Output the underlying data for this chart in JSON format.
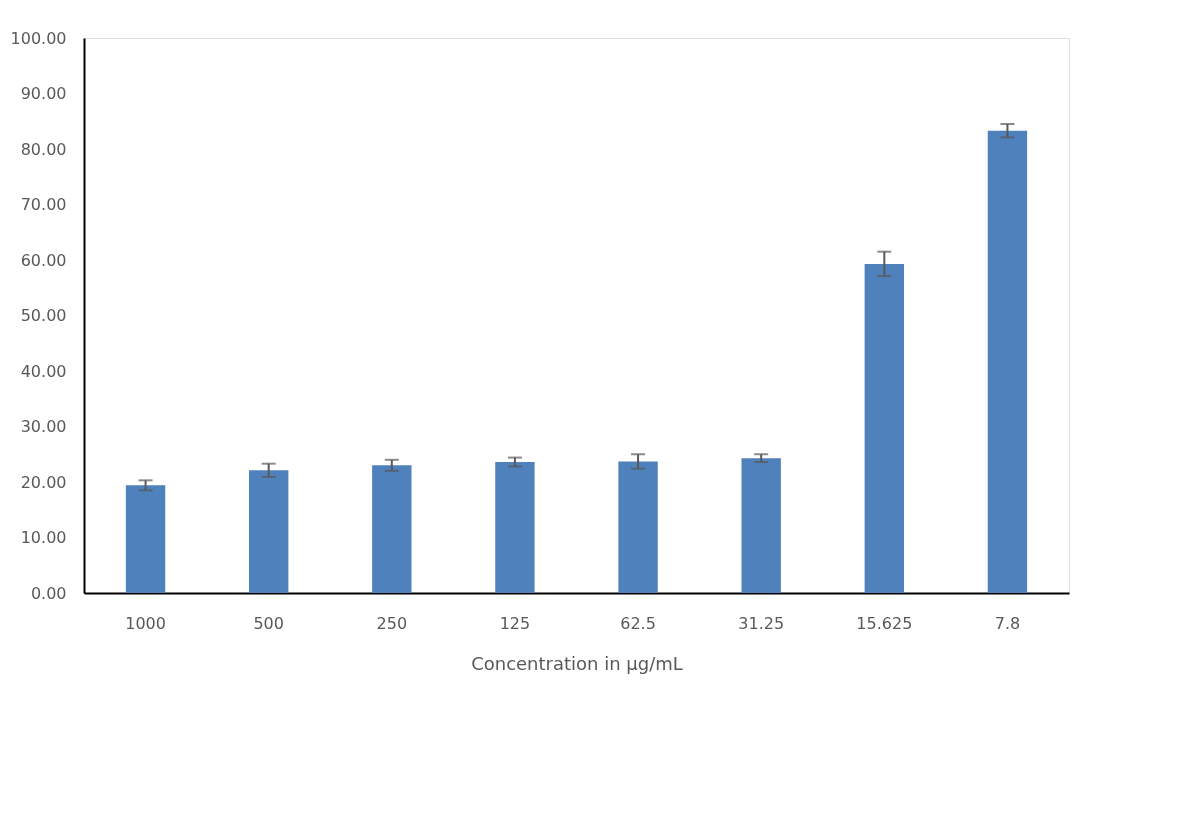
{
  "chart_data": {
    "type": "bar",
    "xlabel": "Concentration in µg/mL",
    "categories": [
      "1000",
      "500",
      "250",
      "125",
      "62.5",
      "31.25",
      "15.625",
      "7.8"
    ],
    "values": [
      19.4,
      22.1,
      23.0,
      23.6,
      23.7,
      24.3,
      59.3,
      83.3
    ],
    "errors": [
      0.9,
      1.2,
      1.0,
      0.8,
      1.3,
      0.7,
      2.2,
      1.2
    ],
    "color": "#4f81bd",
    "ylim": [
      0,
      100
    ],
    "yticks": [
      {
        "value": 0,
        "label": "0.00"
      },
      {
        "value": 10,
        "label": "10.00"
      },
      {
        "value": 20,
        "label": "20.00"
      },
      {
        "value": 30,
        "label": "30.00"
      },
      {
        "value": 40,
        "label": "40.00"
      },
      {
        "value": 50,
        "label": "50.00"
      },
      {
        "value": 60,
        "label": "60.00"
      },
      {
        "value": 70,
        "label": "70.00"
      },
      {
        "value": 80,
        "label": "80.00"
      },
      {
        "value": 90,
        "label": "90.00"
      },
      {
        "value": 100,
        "label": "100.00"
      }
    ],
    "grid": false
  }
}
